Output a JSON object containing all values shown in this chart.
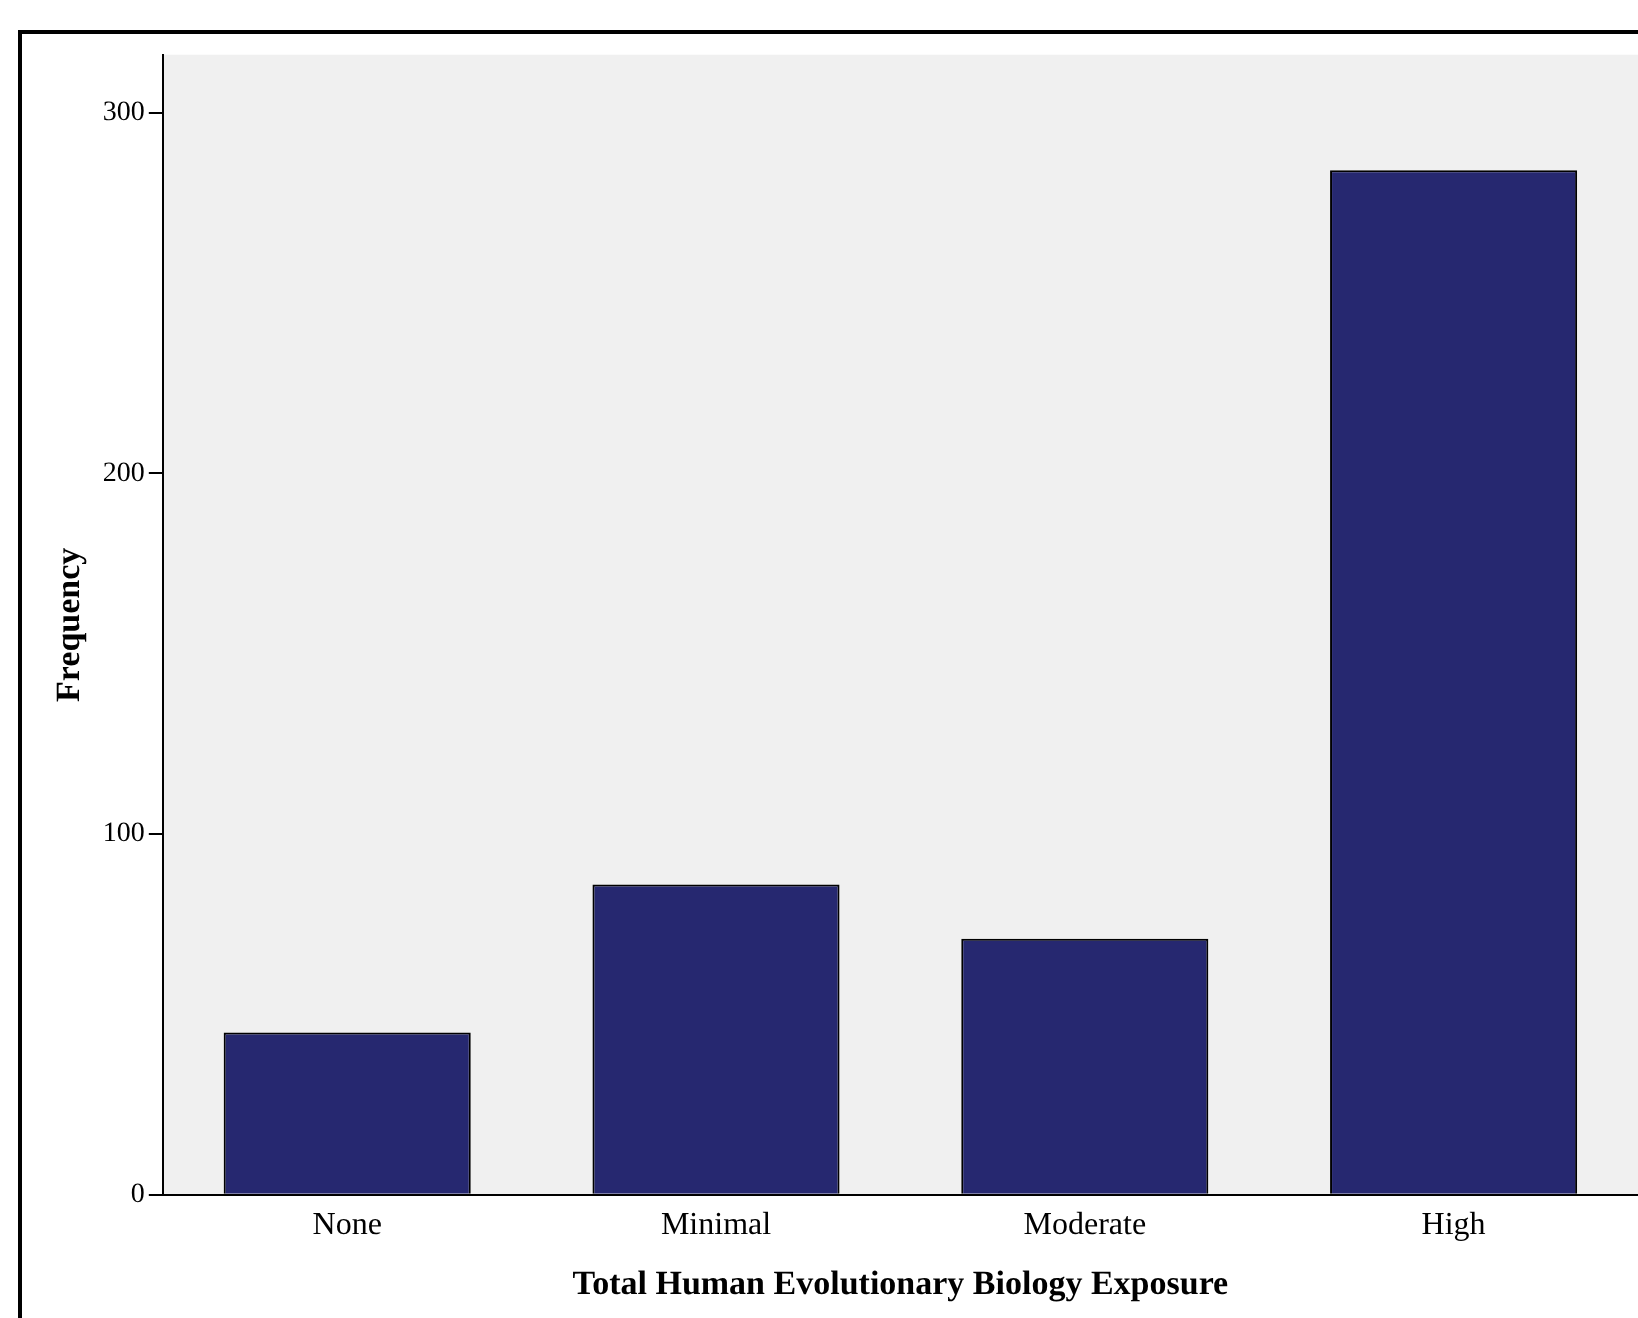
{
  "chart_data": {
    "type": "bar",
    "xlabel": "Total Human Evolutionary Biology Exposure",
    "ylabel": "Frequency",
    "categories": [
      "None",
      "Minimal",
      "Moderate",
      "High"
    ],
    "values": [
      45,
      86,
      71,
      284
    ],
    "color": "#262870",
    "ylim": [
      0,
      316
    ],
    "yticks": [
      0,
      100,
      200,
      300
    ],
    "grid": false,
    "legend": false
  }
}
